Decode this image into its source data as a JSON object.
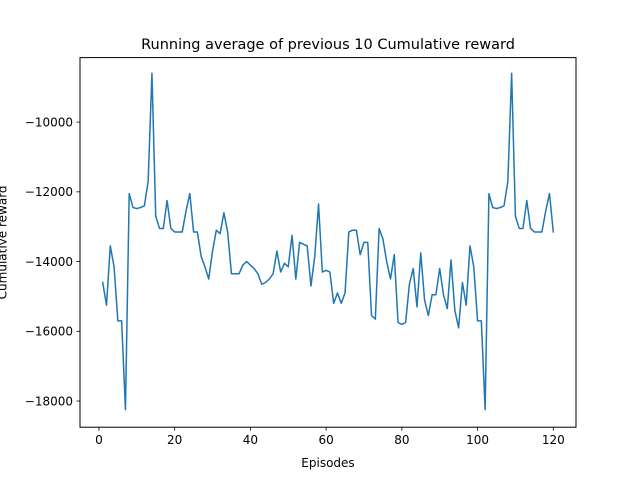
{
  "chart_data": {
    "type": "line",
    "title": "Running average of previous 10 Cumulative reward",
    "xlabel": "Episodes",
    "ylabel": "Cumulative reward",
    "xlim": [
      -5,
      126
    ],
    "ylim": [
      -18750,
      -8150
    ],
    "xticks": [
      0,
      20,
      40,
      60,
      80,
      100,
      120
    ],
    "yticks": [
      -18000,
      -16000,
      -14000,
      -12000,
      -10000
    ],
    "grid": false,
    "legend": "none",
    "series": [
      {
        "color": "#1f77b4",
        "x": [
          1,
          2,
          3,
          4,
          5,
          6,
          7,
          8,
          9,
          10,
          11,
          12,
          13,
          14,
          15,
          16,
          17,
          18,
          19,
          20,
          21,
          22,
          23,
          24,
          25,
          26,
          27,
          28,
          29,
          30,
          31,
          32,
          33,
          34,
          35,
          36,
          37,
          38,
          39,
          40,
          41,
          42,
          43,
          44,
          45,
          46,
          47,
          48,
          49,
          50,
          51,
          52,
          53,
          54,
          55,
          56,
          57,
          58,
          59,
          60,
          61,
          62,
          63,
          64,
          65,
          66,
          67,
          68,
          69,
          70,
          71,
          72,
          73,
          74,
          75,
          76,
          77,
          78,
          79,
          80,
          81,
          82,
          83,
          84,
          85,
          86,
          87,
          88,
          89,
          90,
          91,
          92,
          93,
          94,
          95,
          96,
          97,
          98,
          99,
          100,
          101,
          102,
          103,
          104,
          105,
          106,
          107,
          108,
          109,
          110,
          111,
          112,
          113,
          114,
          115,
          116,
          117,
          118,
          119,
          120
        ],
        "y": [
          -14600,
          -15250,
          -13550,
          -14150,
          -15700,
          -15700,
          -18250,
          -12050,
          -12450,
          -12480,
          -12450,
          -12400,
          -11700,
          -8600,
          -12700,
          -13050,
          -13050,
          -12250,
          -13050,
          -13150,
          -13150,
          -13150,
          -12550,
          -12050,
          -13150,
          -13150,
          -13850,
          -14150,
          -14500,
          -13700,
          -13100,
          -13200,
          -12600,
          -13150,
          -14350,
          -14350,
          -14350,
          -14100,
          -14000,
          -14100,
          -14200,
          -14350,
          -14650,
          -14600,
          -14500,
          -14350,
          -13700,
          -14300,
          -14050,
          -14150,
          -13250,
          -14500,
          -13450,
          -13500,
          -13550,
          -14700,
          -13850,
          -12350,
          -14300,
          -14250,
          -14300,
          -15200,
          -14900,
          -15200,
          -14900,
          -13150,
          -13100,
          -13100,
          -13800,
          -13450,
          -13450,
          -15550,
          -15650,
          -13050,
          -13350,
          -14000,
          -14500,
          -13800,
          -15750,
          -15800,
          -15750,
          -14650,
          -14200,
          -15300,
          -13750,
          -15100,
          -15550,
          -14950,
          -14950,
          -14200,
          -14950,
          -15350,
          -13950,
          -15400,
          -15900,
          -14600,
          -15250,
          -13550,
          -14150,
          -15700,
          -15700,
          -18250,
          -12050,
          -12450,
          -12480,
          -12450,
          -12400,
          -11700,
          -8600,
          -12700,
          -13050,
          -13050,
          -12250,
          -13050,
          -13150,
          -13150,
          -13150,
          -12550,
          -12050,
          -13150
        ]
      }
    ]
  }
}
